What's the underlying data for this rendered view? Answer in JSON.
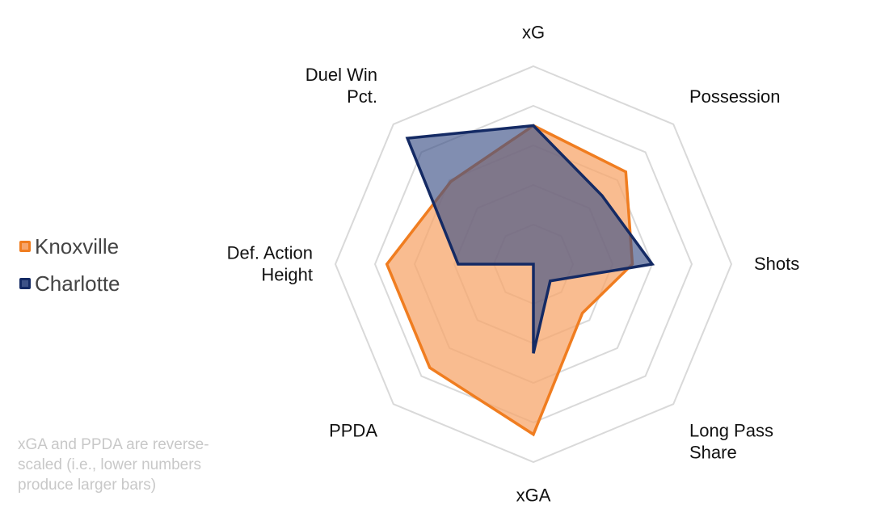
{
  "chart_data": {
    "type": "radar",
    "axes": [
      "xG",
      "Possession",
      "Shots",
      "Long Pass Share",
      "xGA",
      "PPDA",
      "Def. Action Height",
      "Duel Win Pct."
    ],
    "axis_label_lines": [
      [
        "xG"
      ],
      [
        "Possession"
      ],
      [
        "Shots"
      ],
      [
        "Long Pass",
        "Share"
      ],
      [
        "xGA"
      ],
      [
        "PPDA"
      ],
      [
        "Def. Action",
        "Height"
      ],
      [
        "Duel Win",
        "Pct."
      ]
    ],
    "rmax": 5,
    "gridlines": true,
    "grid_levels": [
      1,
      2,
      3,
      4,
      5
    ],
    "series": [
      {
        "name": "Knoxville",
        "values": [
          3.5,
          3.3,
          2.5,
          1.75,
          4.3,
          3.7,
          3.7,
          2.95
        ],
        "fill": "#f7a56b",
        "stroke": "#f07d20"
      },
      {
        "name": "Charlotte",
        "values": [
          3.5,
          2.45,
          3.0,
          0.6,
          2.25,
          0.0,
          1.9,
          4.5
        ],
        "fill": "#3d5287",
        "stroke": "#142a64"
      }
    ],
    "legend_position": "left"
  },
  "footnote": "xGA and PPDA are reverse-scaled (i.e., lower numbers produce larger bars)"
}
